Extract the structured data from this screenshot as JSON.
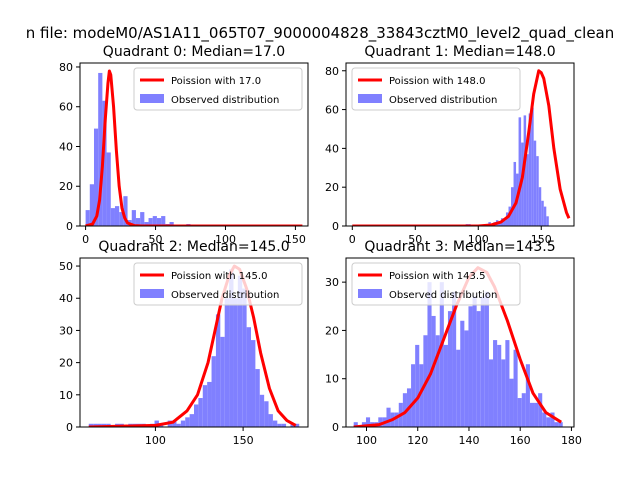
{
  "figure": {
    "suptitle": "n file: modeM0/AS1A11_065T07_9000004828_33843cztM0_level2_quad_clean",
    "colors": {
      "bar": "#8080ff",
      "curve": "#ff0000",
      "axis": "#000000",
      "background": "#ffffff"
    }
  },
  "chart_data": [
    {
      "type": "bar",
      "title": "Quadrant 0: Median=17.0",
      "legend": [
        "Poission with 17.0",
        "Observed distribution"
      ],
      "legend_position": "top-right",
      "xlim": [
        -4,
        159
      ],
      "ylim": [
        0,
        82
      ],
      "xticks": [
        0,
        50,
        100,
        150
      ],
      "xtick_labels": [
        "0",
        "50",
        "100",
        "150"
      ],
      "yticks": [
        0,
        20,
        40,
        60,
        80
      ],
      "ytick_labels": [
        "0",
        "20",
        "40",
        "60",
        "80"
      ],
      "bin_start": 0,
      "bin_width": 3,
      "counts": [
        8,
        21,
        49,
        77,
        63,
        37,
        9,
        10,
        7,
        15,
        3,
        8,
        4,
        7,
        2,
        4,
        5,
        4,
        5,
        1,
        2,
        0,
        0,
        0,
        1,
        0,
        0,
        0,
        0,
        0,
        0,
        0,
        0,
        0,
        0,
        0,
        0,
        0,
        0,
        0,
        0,
        0,
        0,
        0,
        0,
        0,
        0,
        0,
        0,
        0,
        0
      ],
      "curve": {
        "name": "Poission with 17.0",
        "x": [
          0,
          5,
          8,
          10,
          12,
          14,
          16,
          17,
          18,
          20,
          22,
          24,
          26,
          28,
          30,
          35,
          40,
          50,
          100,
          155
        ],
        "y": [
          0,
          1,
          5,
          13,
          30,
          53,
          72,
          78,
          76,
          60,
          38,
          20,
          9,
          4,
          1.5,
          0.2,
          0,
          0,
          0,
          0
        ]
      }
    },
    {
      "type": "bar",
      "title": "Quadrant 1: Median=148.0",
      "legend": [
        "Poission with 148.0",
        "Observed distribution"
      ],
      "legend_position": "top-left",
      "xlim": [
        -5,
        176
      ],
      "ylim": [
        0,
        84
      ],
      "xticks": [
        0,
        50,
        100,
        150
      ],
      "xtick_labels": [
        "0",
        "50",
        "100",
        "150"
      ],
      "yticks": [
        0,
        20,
        40,
        60,
        80
      ],
      "ytick_labels": [
        "0",
        "20",
        "40",
        "60",
        "80"
      ],
      "bin_start": 90,
      "bin_width": 2,
      "counts": [
        1,
        1,
        0,
        0,
        0,
        0,
        0,
        0,
        1,
        2,
        1,
        2,
        3,
        2,
        4,
        3,
        7,
        10,
        20,
        33,
        27,
        56,
        43,
        57,
        37,
        58,
        61,
        44,
        36,
        20,
        13,
        10,
        5
      ],
      "curve": {
        "name": "Poission with 148.0",
        "x": [
          0,
          80,
          100,
          110,
          118,
          124,
          130,
          135,
          140,
          144,
          148,
          150,
          152,
          156,
          160,
          165,
          170,
          172
        ],
        "y": [
          0,
          0,
          0,
          0.5,
          2,
          5,
          12,
          25,
          48,
          68,
          80,
          79,
          76,
          62,
          40,
          19,
          7,
          4
        ]
      }
    },
    {
      "type": "bar",
      "title": "Quadrant 2: Median=145.0",
      "legend": [
        "Poission with 145.0",
        "Observed distribution"
      ],
      "legend_position": "top-right",
      "xlim": [
        57,
        187
      ],
      "ylim": [
        0,
        52.5
      ],
      "xticks": [
        100,
        150
      ],
      "xtick_labels": [
        "100",
        "150"
      ],
      "yticks": [
        0,
        10,
        20,
        30,
        40,
        50
      ],
      "ytick_labels": [
        "0",
        "10",
        "20",
        "30",
        "40",
        "50"
      ],
      "bin_start": 62,
      "bin_width": 2.5,
      "counts": [
        1,
        1,
        1,
        1,
        1,
        0,
        1,
        1,
        0,
        1,
        1,
        1,
        1,
        0,
        1,
        2,
        1,
        0,
        2,
        2,
        1,
        2,
        3,
        4,
        7,
        9,
        13,
        14,
        22,
        35,
        28,
        40,
        49,
        40,
        47,
        43,
        31,
        27,
        18,
        10,
        8,
        4,
        2,
        1,
        1,
        0,
        1,
        1,
        0
      ],
      "curve": {
        "name": "Poission with 145.0",
        "x": [
          62,
          100,
          110,
          118,
          124,
          130,
          134,
          138,
          142,
          145,
          148,
          152,
          156,
          160,
          165,
          170,
          175,
          180
        ],
        "y": [
          0,
          0.5,
          1.5,
          5,
          10,
          20,
          30,
          40,
          47,
          50,
          49,
          43,
          34,
          23,
          12,
          5,
          2,
          0.5
        ]
      }
    },
    {
      "type": "bar",
      "title": "Quadrant 3: Median=143.5",
      "legend": [
        "Poission with 143.5",
        "Observed distribution"
      ],
      "legend_position": "top-left",
      "xlim": [
        92,
        181
      ],
      "ylim": [
        0,
        35
      ],
      "xticks": [
        100,
        120,
        140,
        160,
        180
      ],
      "xtick_labels": [
        "100",
        "120",
        "140",
        "160",
        "180"
      ],
      "yticks": [
        0,
        10,
        20,
        30
      ],
      "ytick_labels": [
        "0",
        "10",
        "20",
        "30"
      ],
      "bin_start": 95,
      "bin_width": 1.6,
      "counts": [
        1,
        0,
        1,
        2,
        1,
        1,
        2,
        2,
        4,
        3,
        3,
        5,
        7,
        8,
        13,
        17,
        13,
        19,
        30,
        23,
        19,
        30,
        17,
        24,
        28,
        16,
        22,
        20,
        25,
        27,
        24,
        27,
        28,
        14,
        18,
        17,
        14,
        18,
        10,
        16,
        6,
        7,
        13,
        5,
        5,
        7,
        3,
        2,
        3,
        1,
        1
      ],
      "curve": {
        "name": "Poission with 143.5",
        "x": [
          95,
          105,
          110,
          115,
          120,
          125,
          130,
          135,
          140,
          143.5,
          147,
          150,
          155,
          160,
          165,
          170,
          176
        ],
        "y": [
          0,
          0.5,
          1.5,
          3,
          6,
          11,
          18,
          25,
          31,
          33,
          32,
          29,
          22,
          14,
          7,
          3,
          1
        ]
      }
    }
  ]
}
